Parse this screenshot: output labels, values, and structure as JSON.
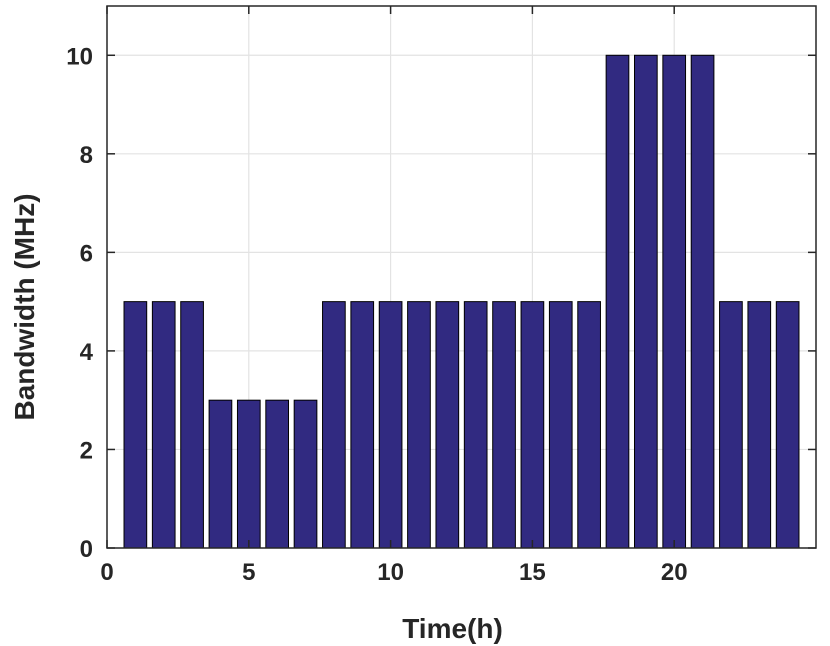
{
  "chart_data": {
    "type": "bar",
    "title": "",
    "xlabel": "Time(h)",
    "ylabel": "Bandwidth (MHz)",
    "categories": [
      1,
      2,
      3,
      4,
      5,
      6,
      7,
      8,
      9,
      10,
      11,
      12,
      13,
      14,
      15,
      16,
      17,
      18,
      19,
      20,
      21,
      22,
      23,
      24
    ],
    "values": [
      5,
      5,
      5,
      3,
      3,
      3,
      3,
      5,
      5,
      5,
      5,
      5,
      5,
      5,
      5,
      5,
      5,
      10,
      10,
      10,
      10,
      5,
      5,
      5
    ],
    "xlim": [
      0,
      25
    ],
    "ylim": [
      0,
      11
    ],
    "xticks": [
      0,
      5,
      10,
      15,
      20
    ],
    "yticks": [
      0,
      2,
      4,
      6,
      8,
      10
    ],
    "grid": true,
    "bar_color": "#312a81",
    "bar_edge_color": "#000000"
  }
}
